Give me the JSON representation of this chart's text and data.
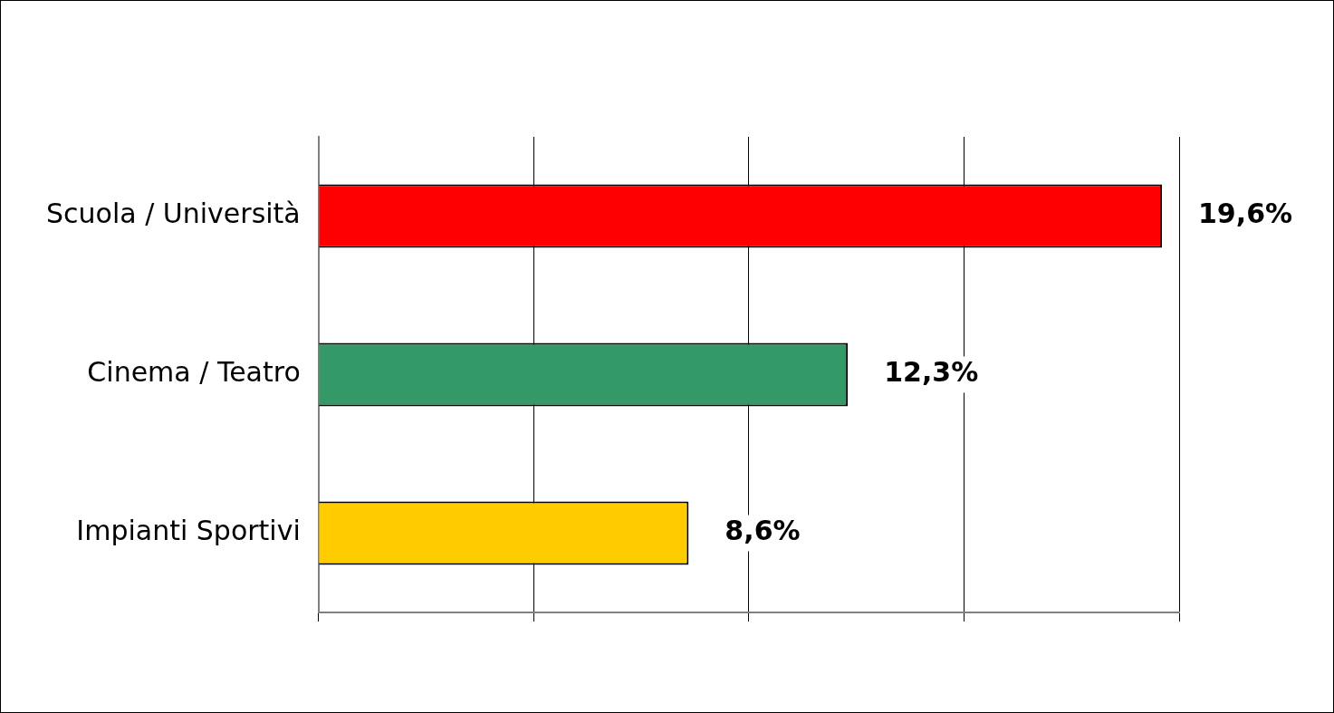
{
  "chart_data": {
    "type": "bar",
    "orientation": "horizontal",
    "categories": [
      "Scuola / Università",
      "Cinema / Teatro",
      "Impianti Sportivi"
    ],
    "values": [
      19.6,
      12.3,
      8.6
    ],
    "colors": [
      "#ff0000",
      "#339966",
      "#ffcc00"
    ],
    "value_labels": [
      "19,6%",
      "12,3%",
      "8,6%"
    ],
    "xlim": [
      0,
      20
    ],
    "xticks": [
      {
        "value": 0,
        "label": null
      },
      {
        "value": 5,
        "label": null
      },
      {
        "value": 10,
        "label": null
      },
      {
        "value": 15,
        "label": null
      },
      {
        "value": 20,
        "label": null
      }
    ],
    "tick_labels": "y",
    "grid": "x",
    "legend": false
  }
}
